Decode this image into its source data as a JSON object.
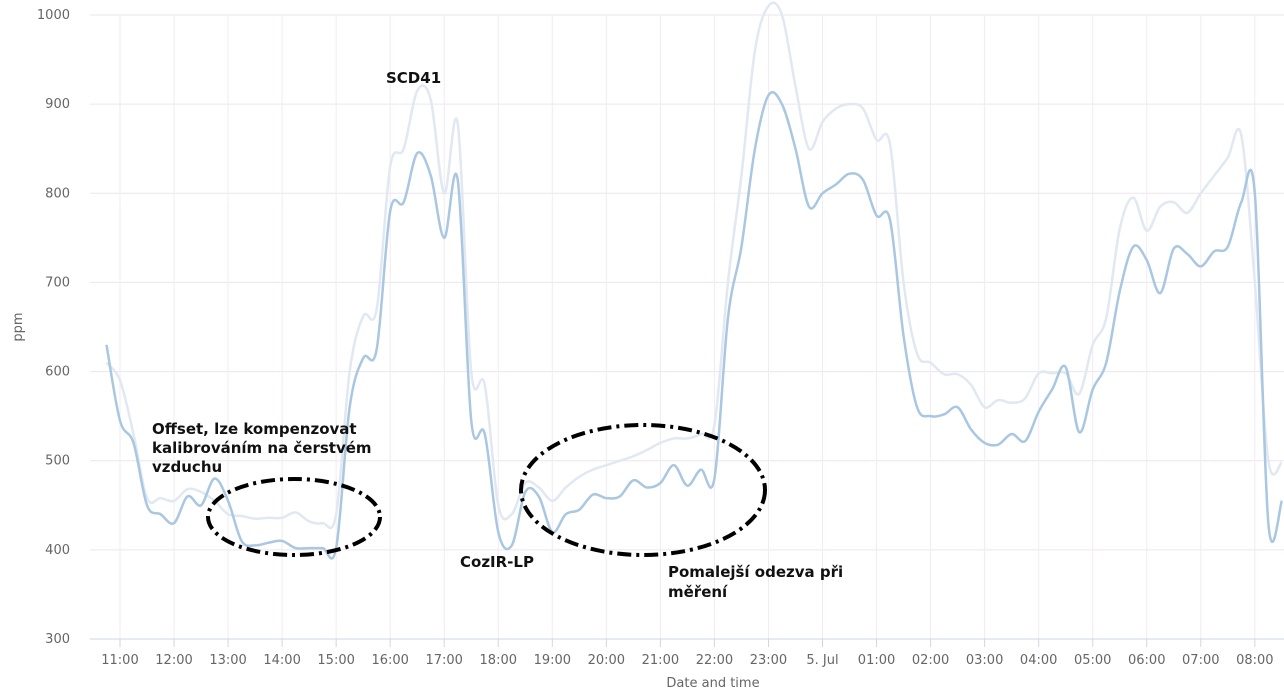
{
  "chart_data": {
    "type": "line",
    "y_label": "ppm",
    "x_label": "Date and time",
    "xlim": [
      10.445,
      32.54
    ],
    "ylim": [
      300,
      1000
    ],
    "yticks": [
      300,
      400,
      500,
      600,
      700,
      800,
      900,
      1000
    ],
    "xticks": [
      {
        "value": 11,
        "label": "11:00"
      },
      {
        "value": 12,
        "label": "12:00"
      },
      {
        "value": 13,
        "label": "13:00"
      },
      {
        "value": 14,
        "label": "14:00"
      },
      {
        "value": 15,
        "label": "15:00"
      },
      {
        "value": 16,
        "label": "16:00"
      },
      {
        "value": 17,
        "label": "17:00"
      },
      {
        "value": 18,
        "label": "18:00"
      },
      {
        "value": 19,
        "label": "19:00"
      },
      {
        "value": 20,
        "label": "20:00"
      },
      {
        "value": 21,
        "label": "21:00"
      },
      {
        "value": 22,
        "label": "22:00"
      },
      {
        "value": 23,
        "label": "23:00"
      },
      {
        "value": 24,
        "label": "5. Jul"
      },
      {
        "value": 25,
        "label": "01:00"
      },
      {
        "value": 26,
        "label": "02:00"
      },
      {
        "value": 27,
        "label": "03:00"
      },
      {
        "value": 28,
        "label": "04:00"
      },
      {
        "value": 29,
        "label": "05:00"
      },
      {
        "value": 30,
        "label": "06:00"
      },
      {
        "value": 31,
        "label": "07:00"
      },
      {
        "value": 32,
        "label": "08:00"
      }
    ],
    "grid": true,
    "x": [
      10.75,
      11,
      11.25,
      11.5,
      11.75,
      12,
      12.25,
      12.5,
      12.75,
      13,
      13.25,
      13.5,
      13.75,
      14,
      14.25,
      14.5,
      14.75,
      15,
      15.25,
      15.5,
      15.75,
      16,
      16.25,
      16.5,
      16.75,
      17,
      17.25,
      17.5,
      17.75,
      18,
      18.25,
      18.5,
      18.75,
      19,
      19.25,
      19.5,
      19.75,
      20,
      20.25,
      20.5,
      20.75,
      21,
      21.25,
      21.5,
      21.75,
      22,
      22.25,
      22.5,
      22.75,
      23,
      23.25,
      23.5,
      23.75,
      24,
      24.25,
      24.5,
      24.75,
      25,
      25.25,
      25.5,
      25.75,
      26,
      26.25,
      26.5,
      26.75,
      27,
      27.25,
      27.5,
      27.75,
      28,
      28.25,
      28.5,
      28.75,
      29,
      29.25,
      29.5,
      29.75,
      30,
      30.25,
      30.5,
      30.75,
      31,
      31.25,
      31.5,
      31.75,
      32,
      32.25,
      32.5
    ],
    "series": [
      {
        "color": "#e1e8f2",
        "values": [
          610,
          590,
          530,
          458,
          458,
          455,
          468,
          465,
          455,
          440,
          438,
          435,
          436,
          436,
          442,
          432,
          430,
          440,
          600,
          662,
          670,
          830,
          850,
          915,
          905,
          800,
          878,
          600,
          585,
          450,
          440,
          475,
          470,
          455,
          470,
          482,
          490,
          495,
          500,
          505,
          512,
          520,
          525,
          525,
          530,
          540,
          700,
          820,
          960,
          1010,
          1000,
          920,
          850,
          880,
          895,
          900,
          895,
          860,
          855,
          700,
          620,
          610,
          597,
          597,
          585,
          560,
          568,
          565,
          570,
          598,
          598,
          598,
          575,
          630,
          660,
          760,
          795,
          758,
          785,
          790,
          778,
          800,
          820,
          840,
          865,
          700,
          500,
          498
        ]
      },
      {
        "color": "#a9c7e0",
        "values": [
          630,
          545,
          520,
          450,
          440,
          430,
          460,
          450,
          480,
          455,
          410,
          405,
          408,
          410,
          402,
          402,
          402,
          402,
          560,
          615,
          625,
          780,
          790,
          845,
          820,
          750,
          815,
          545,
          530,
          420,
          405,
          465,
          460,
          420,
          440,
          445,
          462,
          458,
          460,
          478,
          470,
          475,
          495,
          472,
          490,
          480,
          660,
          740,
          850,
          910,
          900,
          850,
          785,
          800,
          810,
          822,
          815,
          775,
          770,
          640,
          560,
          550,
          552,
          560,
          535,
          520,
          518,
          530,
          522,
          555,
          580,
          605,
          532,
          580,
          610,
          690,
          740,
          725,
          688,
          738,
          732,
          718,
          735,
          740,
          790,
          800,
          430,
          455
        ]
      }
    ],
    "annotations": [
      {
        "lines": [
          "SCD41"
        ]
      },
      {
        "lines": [
          "CozIR-LP"
        ]
      },
      {
        "lines": [
          "Offset, lze kompenzovat",
          "kalibrováním na čerstvém",
          "vzduchu"
        ]
      },
      {
        "lines": [
          "Pomalejší odezva při",
          "měření"
        ]
      }
    ]
  }
}
